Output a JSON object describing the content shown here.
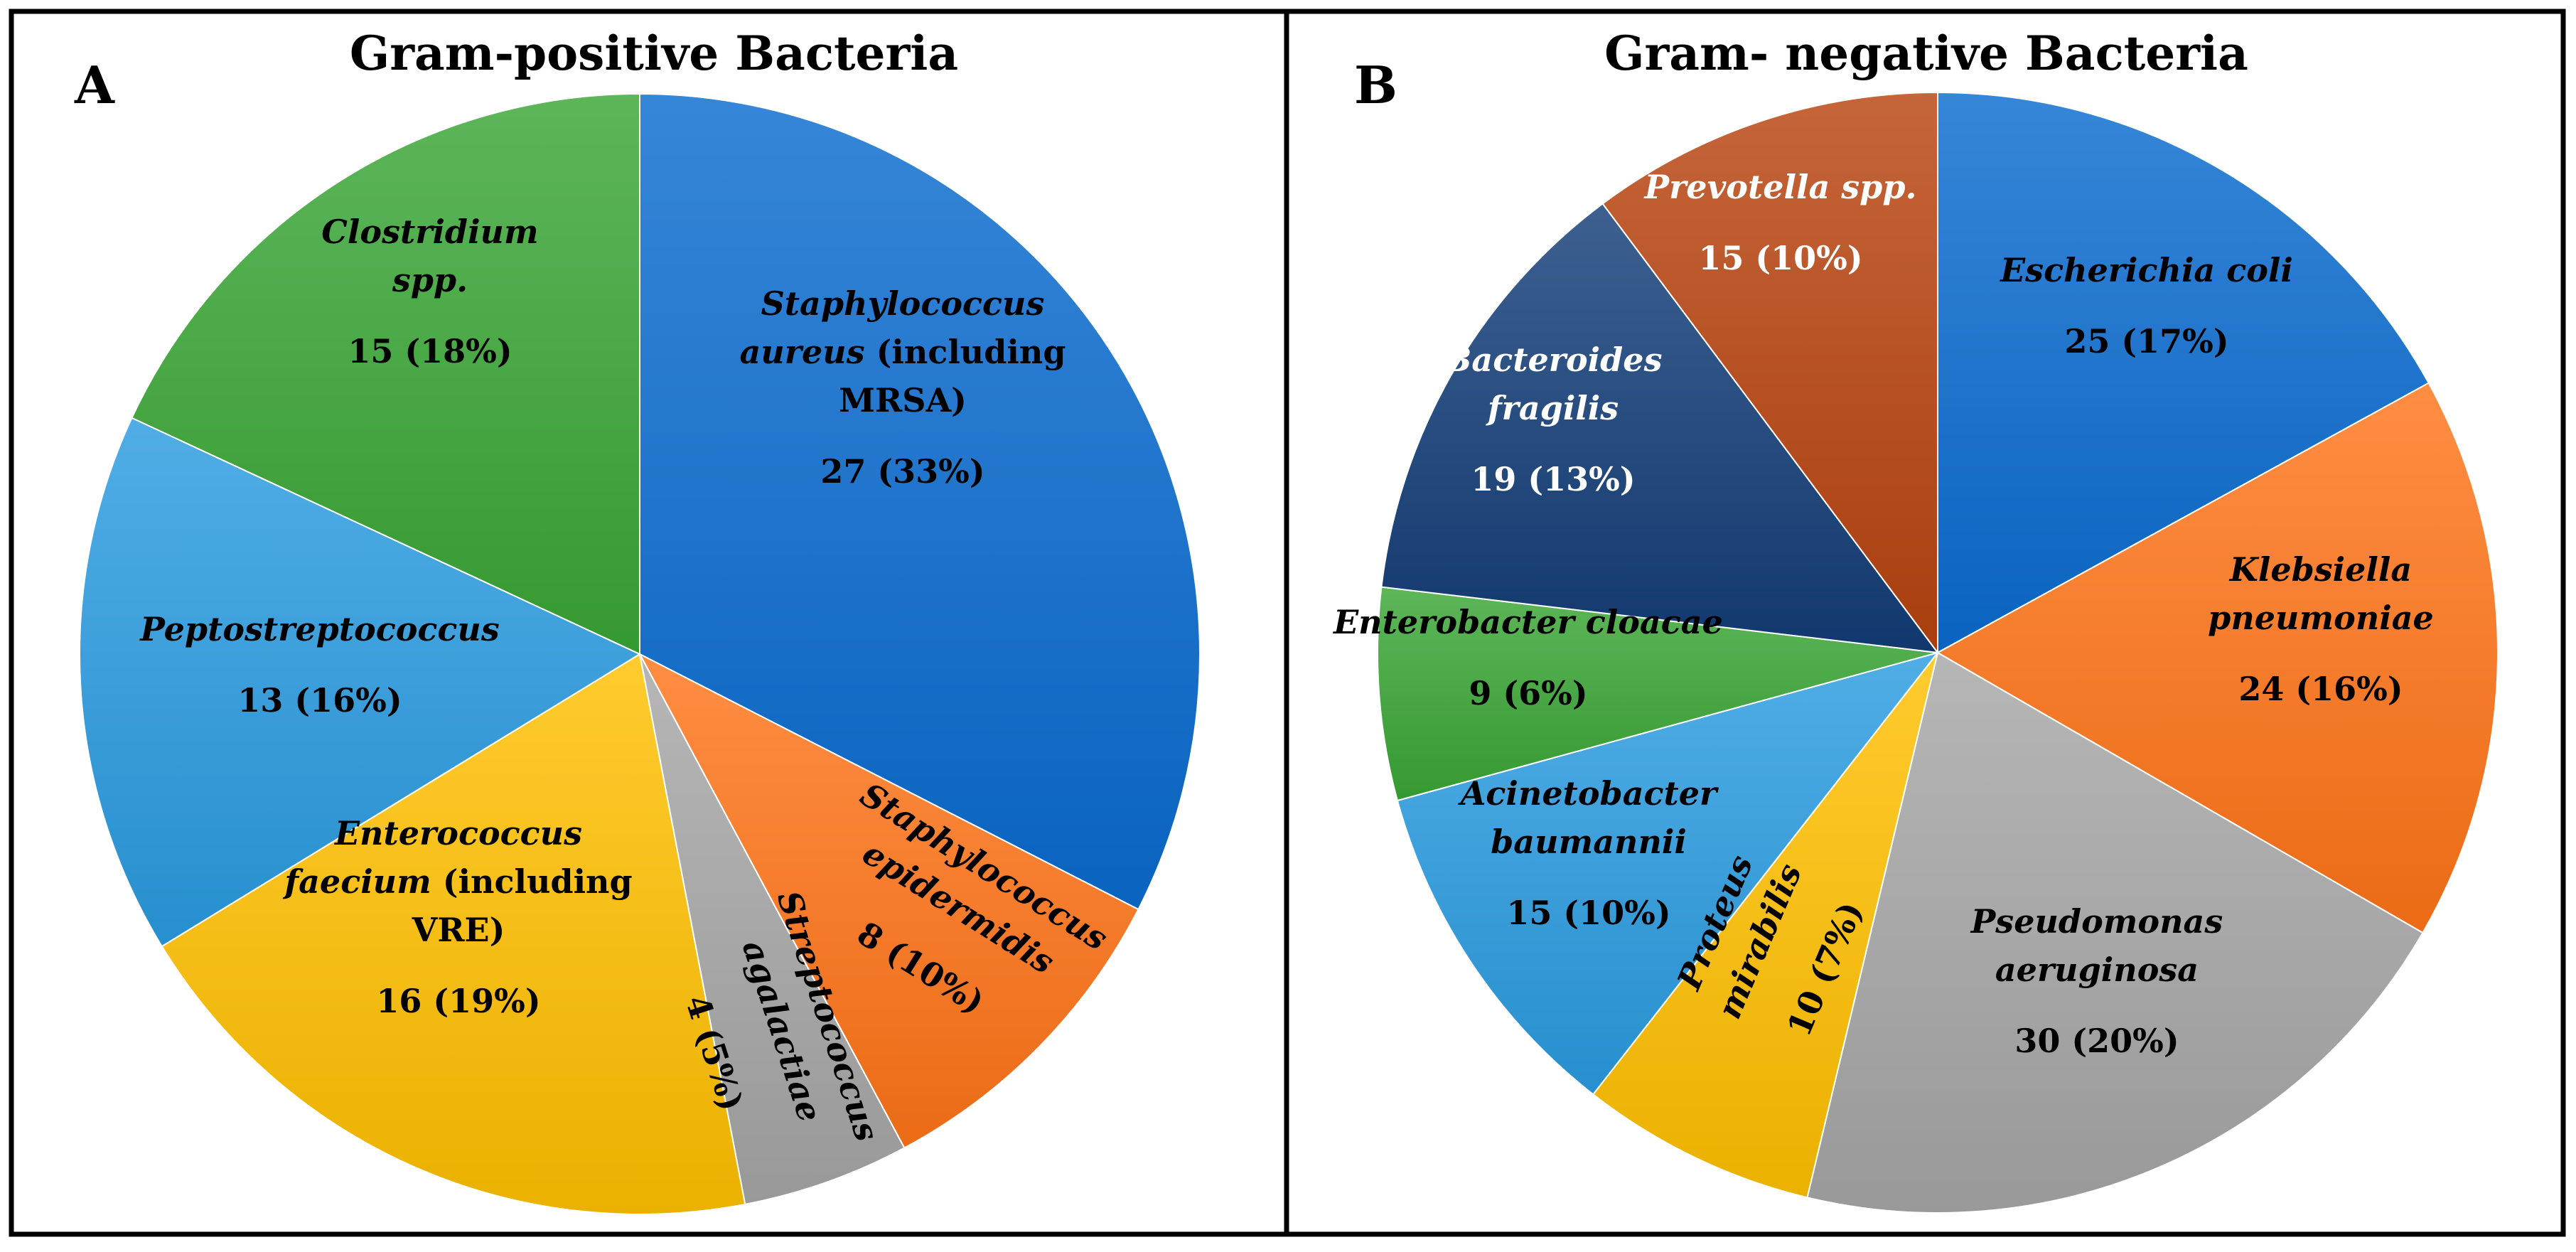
{
  "chart_data": [
    {
      "type": "pie",
      "panel": "A",
      "title": "Gram-positive Bacteria",
      "slices": [
        {
          "name": "Staphylococcus aureus (including MRSA)",
          "label_lines": [
            [
              {
                "t": "Staphylococcus",
                "i": true
              }
            ],
            [
              {
                "t": "aureus",
                "i": true
              },
              {
                "t": " (including",
                "i": false
              }
            ],
            [
              {
                "t": "MRSA)",
                "i": false
              }
            ]
          ],
          "count": 27,
          "value_label": "27 (33%)",
          "color": "#0a6cd0"
        },
        {
          "name": "Staphylococcus epidermidis",
          "label_lines": [
            [
              {
                "t": "Staphylococcus",
                "i": true
              }
            ],
            [
              {
                "t": "epidermidis",
                "i": true
              }
            ]
          ],
          "count": 8,
          "value_label": "8 (10%)",
          "color": "#ff7418"
        },
        {
          "name": "Streptococcus agalactiae",
          "label_lines": [
            [
              {
                "t": "Streptococcus",
                "i": true
              }
            ],
            [
              {
                "t": "agalactiae",
                "i": true
              }
            ]
          ],
          "count": 4,
          "value_label": "4 (5%)",
          "color": "#a6a6a6"
        },
        {
          "name": "Enterococcus faecium (including VRE)",
          "label_lines": [
            [
              {
                "t": "Enterococcus",
                "i": true
              }
            ],
            [
              {
                "t": "faecium",
                "i": true
              },
              {
                "t": " (including",
                "i": false
              }
            ],
            [
              {
                "t": "VRE)",
                "i": false
              }
            ]
          ],
          "count": 16,
          "value_label": "16 (19%)",
          "color": "#ffc000"
        },
        {
          "name": "Peptostreptococcus",
          "label_lines": [
            [
              {
                "t": "Peptostreptococcus",
                "i": true
              }
            ]
          ],
          "count": 13,
          "value_label": "13 (16%)",
          "color": "#2a9be0"
        },
        {
          "name": "Clostridium spp.",
          "label_lines": [
            [
              {
                "t": "Clostridium",
                "i": true
              }
            ],
            [
              {
                "t": "spp.",
                "i": true
              }
            ]
          ],
          "count": 15,
          "value_label": "15 (18%)",
          "color": "#3aa635"
        }
      ]
    },
    {
      "type": "pie",
      "panel": "B",
      "title": "Gram- negative Bacteria",
      "slices": [
        {
          "name": "Escherichia coli",
          "label_lines": [
            [
              {
                "t": "Escherichia coli",
                "i": true
              }
            ]
          ],
          "count": 25,
          "value_label": "25 (17%)",
          "color": "#0a6cd0"
        },
        {
          "name": "Klebsiella pneumoniae",
          "label_lines": [
            [
              {
                "t": "Klebsiella",
                "i": true
              }
            ],
            [
              {
                "t": "pneumoniae",
                "i": true
              }
            ]
          ],
          "count": 24,
          "value_label": "24 (16%)",
          "color": "#ff7418"
        },
        {
          "name": "Pseudomonas aeruginosa",
          "label_lines": [
            [
              {
                "t": "Pseudomonas",
                "i": true
              }
            ],
            [
              {
                "t": "aeruginosa",
                "i": true
              }
            ]
          ],
          "count": 30,
          "value_label": "30 (20%)",
          "color": "#a6a6a6"
        },
        {
          "name": "Proteus mirabilis",
          "label_lines": [
            [
              {
                "t": "Proteus",
                "i": true
              }
            ],
            [
              {
                "t": "mirabilis",
                "i": true
              }
            ]
          ],
          "count": 10,
          "value_label": "10 (7%)",
          "color": "#ffc000"
        },
        {
          "name": "Acinetobacter baumannii",
          "label_lines": [
            [
              {
                "t": "Acinetobacter",
                "i": true
              }
            ],
            [
              {
                "t": "baumannii",
                "i": true
              }
            ]
          ],
          "count": 15,
          "value_label": "15 (10%)",
          "color": "#2a9be0"
        },
        {
          "name": "Enterobacter cloacae",
          "label_lines": [
            [
              {
                "t": "Enterobacter cloacae",
                "i": true
              }
            ]
          ],
          "count": 9,
          "value_label": "9 (6%)",
          "color": "#3aa635"
        },
        {
          "name": "Bacteroides fragilis",
          "label_lines": [
            [
              {
                "t": "Bacteroides",
                "i": true
              }
            ],
            [
              {
                "t": "fragilis",
                "i": true
              }
            ]
          ],
          "count": 19,
          "value_label": "19 (13%)",
          "color": "#123d78"
        },
        {
          "name": "Prevotella spp.",
          "label_lines": [
            [
              {
                "t": "Prevotella spp.",
                "i": true
              }
            ]
          ],
          "count": 15,
          "value_label": "15 (10%)",
          "color": "#b8430f"
        }
      ]
    }
  ]
}
